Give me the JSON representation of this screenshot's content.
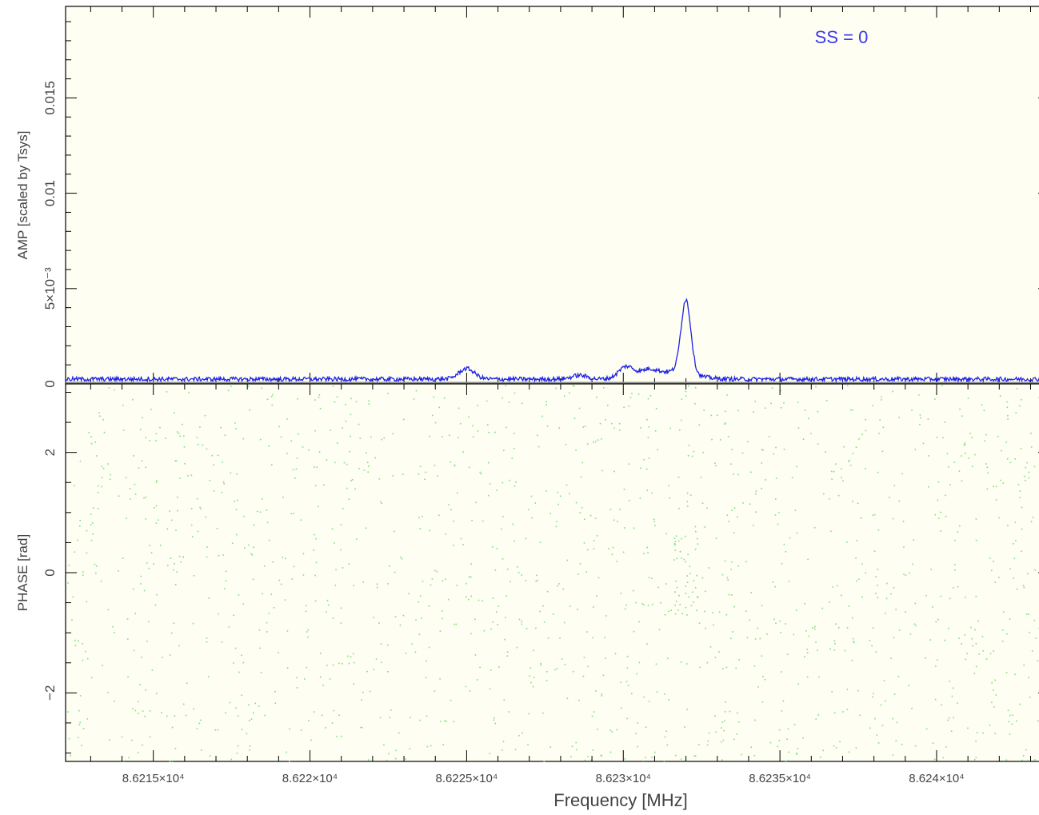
{
  "colors": {
    "background": "#fefef2",
    "frame": "#000000",
    "amp_trace": "#1e22e8",
    "phase_points": "#7ee07e",
    "zero_line": "#8a8a8a",
    "annotation": "#3a3ae8"
  },
  "annotation_text": "SS = 0",
  "chart_data": [
    {
      "type": "line",
      "panel": "amplitude",
      "xlabel": "Frequency [MHz]",
      "ylabel": "AMP [scaled by Tsys]",
      "xlim": [
        86212.2,
        86243.6
      ],
      "ylim": [
        0,
        0.0198
      ],
      "x_tick_labels": [
        "8.6215×10⁴",
        "8.622×10⁴",
        "8.6225×10⁴",
        "8.623×10⁴",
        "8.6235×10⁴",
        "8.624×10⁴"
      ],
      "x_ticks": [
        86215,
        86220,
        86225,
        86230,
        86235,
        86240
      ],
      "y_ticks": [
        0,
        0.005,
        0.01,
        0.015
      ],
      "y_tick_labels": [
        "0",
        "5×10⁻³",
        "0.01",
        "0.015"
      ],
      "baseline": 0.00025,
      "features": [
        {
          "x": 86225.0,
          "peak": 0.0008
        },
        {
          "x": 86228.6,
          "peak": 0.00045
        },
        {
          "x": 86230.1,
          "peak": 0.0009
        },
        {
          "x": 86230.8,
          "peak": 0.0006
        },
        {
          "x": 86232.0,
          "peak": 0.0041
        }
      ]
    },
    {
      "type": "scatter",
      "panel": "phase",
      "ylabel": "PHASE [rad]",
      "xlim": [
        86212.2,
        86243.6
      ],
      "ylim": [
        -3.14,
        3.14
      ],
      "y_ticks": [
        -2,
        0,
        2
      ],
      "y_tick_labels": [
        "−2",
        "0",
        "2"
      ],
      "distribution": "uniform random over ylim"
    }
  ]
}
